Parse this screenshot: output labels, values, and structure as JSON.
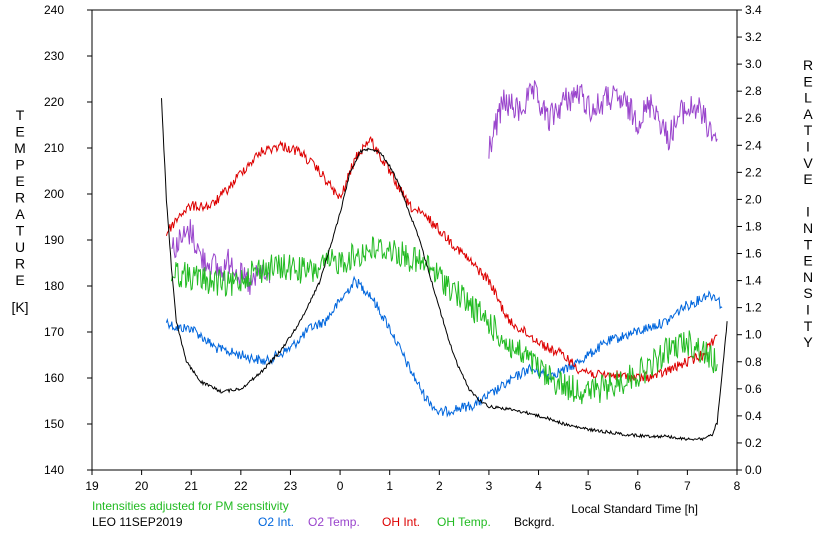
{
  "chart_data": {
    "type": "line",
    "left_axis_label_letters": [
      "T",
      "E",
      "M",
      "P",
      "E",
      "R",
      "A",
      "T",
      "U",
      "R",
      "E"
    ],
    "left_axis_unit": "[K]",
    "right_axis_label_letters": [
      "R",
      "E",
      "L",
      "A",
      "T",
      "I",
      "V",
      "E",
      "",
      "I",
      "N",
      "T",
      "E",
      "N",
      "S",
      "I",
      "T",
      "Y"
    ],
    "xlabel": "Local Standard Time [h]",
    "x_ticks": [
      "19",
      "20",
      "21",
      "22",
      "23",
      "0",
      "1",
      "2",
      "3",
      "4",
      "5",
      "6",
      "7",
      "8"
    ],
    "xlim": [
      19,
      32
    ],
    "y_left_ticks": [
      "140",
      "150",
      "160",
      "170",
      "180",
      "190",
      "200",
      "210",
      "220",
      "230",
      "240"
    ],
    "y_left_lim": [
      140,
      240
    ],
    "y_right_ticks": [
      "0.0",
      "0.2",
      "0.4",
      "0.6",
      "0.8",
      "1.0",
      "1.2",
      "1.4",
      "1.6",
      "1.8",
      "2.0",
      "2.2",
      "2.4",
      "2.6",
      "2.8",
      "3.0",
      "3.2",
      "3.4"
    ],
    "y_right_lim": [
      0.0,
      3.4
    ],
    "note": "Intensities adjusted for PM sensitivity",
    "station": "LEO 11SEP2019",
    "colors": {
      "o2_int": "#0066dd",
      "o2_temp": "#9944cc",
      "oh_int": "#dd0000",
      "oh_temp": "#22bb22",
      "background": "#000000",
      "note": "#22bb22"
    },
    "series": [
      {
        "name": "O2 Int.",
        "axis": "right",
        "x": [
          20.5,
          20.7,
          21.0,
          21.5,
          22.0,
          22.5,
          23.0,
          23.4,
          23.7,
          24.0,
          24.3,
          24.6,
          25.0,
          25.4,
          25.7,
          26.0,
          26.3,
          26.7,
          27.0,
          27.4,
          27.8,
          28.2,
          28.6,
          29.0,
          29.4,
          29.8,
          30.2,
          30.6,
          30.9,
          31.2,
          31.4,
          31.6,
          31.7
        ],
        "y": [
          1.1,
          1.05,
          1.05,
          0.9,
          0.85,
          0.8,
          0.9,
          1.05,
          1.1,
          1.25,
          1.4,
          1.3,
          1.05,
          0.75,
          0.55,
          0.42,
          0.45,
          0.48,
          0.55,
          0.65,
          0.75,
          0.7,
          0.75,
          0.85,
          0.95,
          1.0,
          1.05,
          1.1,
          1.2,
          1.25,
          1.3,
          1.28,
          1.2
        ]
      },
      {
        "name": "O2 Temp.",
        "axis": "left",
        "x": [
          20.6,
          20.8,
          21.0,
          21.2,
          21.4,
          21.6,
          21.8,
          22.0,
          22.2,
          22.4,
          22.6,
          27.0,
          27.3,
          27.6,
          27.9,
          28.2,
          28.5,
          28.8,
          29.1,
          29.4,
          29.7,
          30.0,
          30.3,
          30.6,
          30.9,
          31.2,
          31.4,
          31.6
        ],
        "y": [
          188,
          190,
          192,
          186,
          185,
          183,
          186,
          182,
          180,
          183,
          181,
          210,
          220,
          218,
          222,
          216,
          220,
          222,
          218,
          221,
          220,
          216,
          220,
          212,
          218,
          219,
          215,
          212
        ]
      },
      {
        "name": "OH Int.",
        "axis": "right",
        "x": [
          20.5,
          20.8,
          21.0,
          21.4,
          21.8,
          22.0,
          22.4,
          22.8,
          23.2,
          23.6,
          24.0,
          24.3,
          24.6,
          25.0,
          25.4,
          25.8,
          26.2,
          26.6,
          27.0,
          27.4,
          27.8,
          28.2,
          28.5,
          28.8,
          29.2,
          29.6,
          30.0,
          30.4,
          30.7,
          31.0,
          31.3,
          31.6
        ],
        "y": [
          1.75,
          1.9,
          1.95,
          1.95,
          2.1,
          2.2,
          2.35,
          2.4,
          2.35,
          2.2,
          2.0,
          2.3,
          2.45,
          2.2,
          1.95,
          1.85,
          1.7,
          1.55,
          1.4,
          1.1,
          1.0,
          0.9,
          0.85,
          0.75,
          0.7,
          0.7,
          0.68,
          0.7,
          0.75,
          0.8,
          0.85,
          1.0
        ]
      },
      {
        "name": "OH Temp.",
        "axis": "left",
        "x": [
          20.6,
          21.0,
          21.4,
          21.8,
          22.2,
          22.6,
          23.0,
          23.4,
          23.8,
          24.2,
          24.6,
          25.0,
          25.4,
          25.8,
          26.2,
          26.6,
          27.0,
          27.4,
          27.8,
          28.2,
          28.6,
          29.0,
          29.4,
          29.8,
          30.2,
          30.6,
          31.0,
          31.4,
          31.6
        ],
        "y": [
          183,
          182,
          181,
          180,
          183,
          184,
          184,
          183,
          185,
          186,
          188,
          188,
          186,
          184,
          180,
          176,
          172,
          167,
          164,
          160,
          158,
          157,
          158,
          160,
          162,
          166,
          168,
          165,
          163
        ]
      },
      {
        "name": "Bckgrd.",
        "axis": "right",
        "x": [
          20.4,
          20.5,
          20.6,
          20.7,
          20.9,
          21.2,
          21.6,
          22.0,
          22.4,
          22.8,
          23.2,
          23.6,
          23.8,
          24.0,
          24.2,
          24.4,
          24.6,
          24.8,
          25.0,
          25.2,
          25.4,
          25.6,
          25.8,
          26.0,
          26.2,
          26.4,
          26.6,
          26.8,
          27.0,
          27.4,
          27.8,
          28.2,
          28.6,
          29.0,
          29.4,
          29.8,
          30.2,
          30.6,
          30.9,
          31.1,
          31.3,
          31.5,
          31.6,
          31.7,
          31.8
        ],
        "y": [
          2.75,
          2.0,
          1.5,
          1.1,
          0.8,
          0.65,
          0.58,
          0.6,
          0.72,
          0.88,
          1.1,
          1.4,
          1.65,
          1.9,
          2.2,
          2.35,
          2.38,
          2.35,
          2.25,
          2.1,
          1.9,
          1.7,
          1.45,
          1.2,
          0.95,
          0.75,
          0.6,
          0.52,
          0.47,
          0.45,
          0.42,
          0.38,
          0.33,
          0.3,
          0.28,
          0.26,
          0.25,
          0.25,
          0.23,
          0.23,
          0.23,
          0.26,
          0.35,
          0.7,
          1.1
        ]
      }
    ]
  }
}
